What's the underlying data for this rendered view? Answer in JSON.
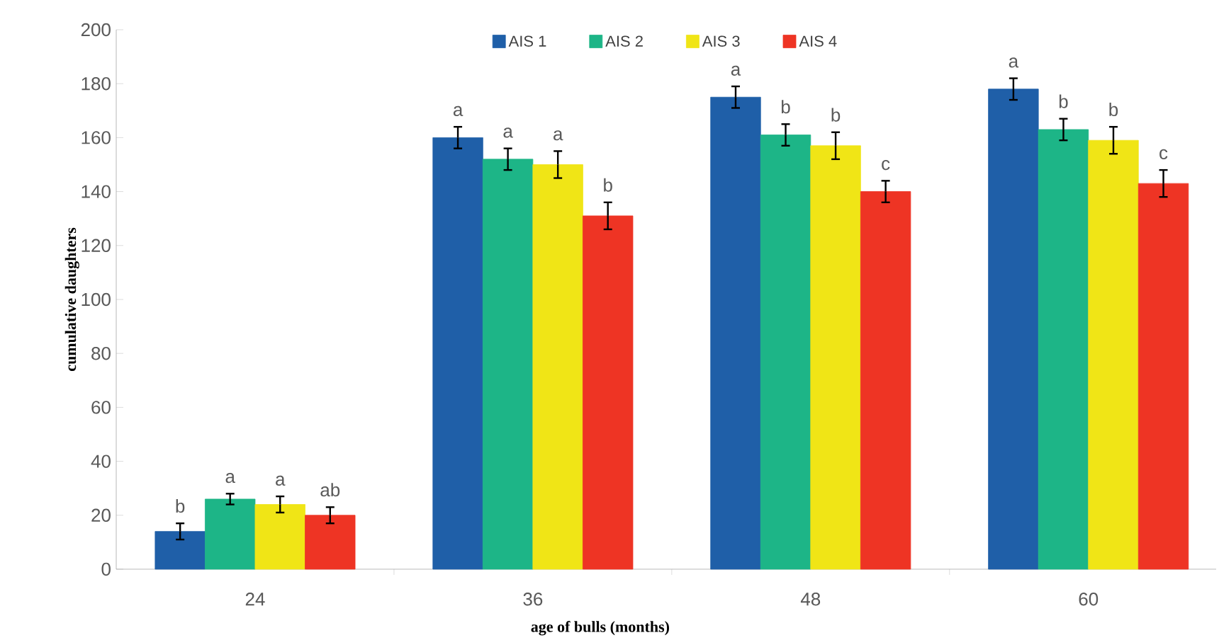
{
  "chart_data": {
    "type": "bar",
    "xlabel": "age of bulls (months)",
    "ylabel": "cumulative daughters",
    "categories": [
      "24",
      "36",
      "48",
      "60"
    ],
    "series": [
      {
        "name": "AIS 1",
        "color": "#1f5fa8",
        "values": [
          14,
          160,
          175,
          178
        ],
        "errors": [
          3,
          4,
          4,
          4
        ]
      },
      {
        "name": "AIS 2",
        "color": "#1db587",
        "values": [
          26,
          152,
          161,
          163
        ],
        "errors": [
          2,
          4,
          4,
          4
        ]
      },
      {
        "name": "AIS 3",
        "color": "#f0e516",
        "values": [
          24,
          150,
          157,
          159
        ],
        "errors": [
          3,
          5,
          5,
          5
        ]
      },
      {
        "name": "AIS 4",
        "color": "#ee3424",
        "values": [
          20,
          131,
          140,
          143
        ],
        "errors": [
          3,
          5,
          4,
          5
        ]
      }
    ],
    "ylim": [
      0,
      200
    ],
    "yticks": [
      0,
      20,
      40,
      60,
      80,
      100,
      120,
      140,
      160,
      180,
      200
    ],
    "legend": "top",
    "grid": false,
    "annotations": [
      "b",
      "a",
      "a",
      "ab",
      "a",
      "a",
      "a",
      "b",
      "a",
      "b",
      "b",
      "c",
      "a",
      "b",
      "b",
      "c"
    ]
  }
}
